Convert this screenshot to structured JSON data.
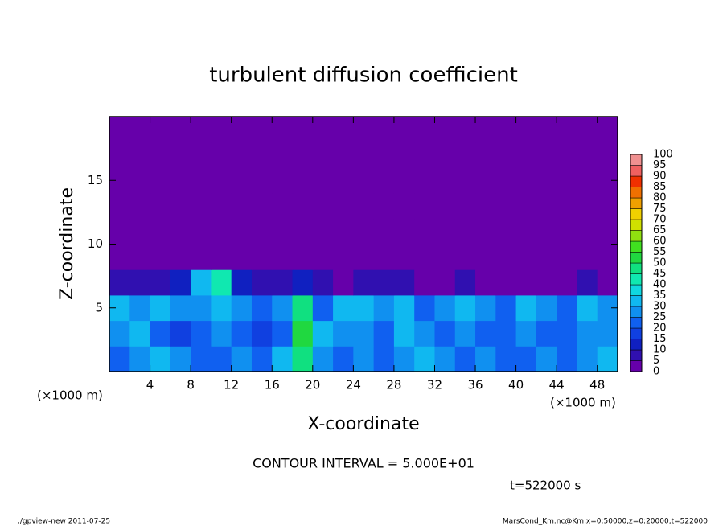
{
  "chart_data": {
    "type": "heatmap",
    "title": "turbulent diffusion coefficient",
    "x_label": "X-coordinate",
    "y_label": "Z-coordinate",
    "x_unit": "(×1000 m)",
    "y_unit": "(×1000 m)",
    "xlim": [
      0,
      50
    ],
    "ylim": [
      0,
      20
    ],
    "xticks": [
      4,
      8,
      12,
      16,
      20,
      24,
      28,
      32,
      36,
      40,
      44,
      48
    ],
    "yticks": [
      5,
      10,
      15
    ],
    "x_bins": [
      0,
      2,
      4,
      6,
      8,
      10,
      12,
      14,
      16,
      18,
      20,
      22,
      24,
      26,
      28,
      30,
      32,
      34,
      36,
      38,
      40,
      42,
      44,
      46,
      48,
      50
    ],
    "y_bins": [
      0,
      2,
      4,
      6,
      8,
      10,
      12,
      14,
      16,
      18,
      20
    ],
    "z": [
      [
        20,
        25,
        30,
        25,
        20,
        20,
        25,
        20,
        30,
        45,
        25,
        20,
        25,
        20,
        25,
        30,
        25,
        20,
        25,
        20,
        20,
        25,
        20,
        25,
        30
      ],
      [
        25,
        30,
        20,
        15,
        20,
        25,
        20,
        15,
        20,
        50,
        30,
        25,
        25,
        20,
        30,
        25,
        20,
        25,
        20,
        20,
        25,
        20,
        20,
        25,
        25
      ],
      [
        30,
        25,
        30,
        25,
        25,
        30,
        25,
        20,
        25,
        45,
        20,
        30,
        30,
        25,
        30,
        20,
        25,
        30,
        25,
        20,
        30,
        25,
        20,
        30,
        25
      ],
      [
        5,
        5,
        5,
        10,
        30,
        40,
        10,
        5,
        5,
        10,
        5,
        0,
        5,
        5,
        5,
        0,
        0,
        5,
        0,
        0,
        0,
        0,
        0,
        5,
        0
      ],
      [
        0,
        0,
        0,
        0,
        0,
        0,
        0,
        0,
        0,
        0,
        0,
        0,
        0,
        0,
        0,
        0,
        0,
        0,
        0,
        0,
        0,
        0,
        0,
        0,
        0
      ],
      [
        0,
        0,
        0,
        0,
        0,
        0,
        0,
        0,
        0,
        0,
        0,
        0,
        0,
        0,
        0,
        0,
        0,
        0,
        0,
        0,
        0,
        0,
        0,
        0,
        0
      ],
      [
        0,
        0,
        0,
        0,
        0,
        0,
        0,
        0,
        0,
        0,
        0,
        0,
        0,
        0,
        0,
        0,
        0,
        0,
        0,
        0,
        0,
        0,
        0,
        0,
        0
      ],
      [
        0,
        0,
        0,
        0,
        0,
        0,
        0,
        0,
        0,
        0,
        0,
        0,
        0,
        0,
        0,
        0,
        0,
        0,
        0,
        0,
        0,
        0,
        0,
        0,
        0
      ],
      [
        0,
        0,
        0,
        0,
        0,
        0,
        0,
        0,
        0,
        0,
        0,
        0,
        0,
        0,
        0,
        0,
        0,
        0,
        0,
        0,
        0,
        0,
        0,
        0,
        0
      ],
      [
        0,
        0,
        0,
        0,
        0,
        0,
        0,
        0,
        0,
        0,
        0,
        0,
        0,
        0,
        0,
        0,
        0,
        0,
        0,
        0,
        0,
        0,
        0,
        0,
        0
      ]
    ],
    "levels": [
      0,
      5,
      10,
      15,
      20,
      25,
      30,
      35,
      40,
      45,
      50,
      55,
      60,
      65,
      70,
      75,
      80,
      85,
      90,
      95,
      100
    ],
    "colors": [
      "#6600aa",
      "#3010b0",
      "#1020c0",
      "#1040e0",
      "#1060f0",
      "#1090f0",
      "#10b8f0",
      "#10d8e0",
      "#10e8b0",
      "#10e080",
      "#20d840",
      "#40e020",
      "#90e010",
      "#d0e000",
      "#f0d000",
      "#f0a000",
      "#f07000",
      "#f03000",
      "#f06060",
      "#f09090"
    ],
    "contour_note": "CONTOUR INTERVAL = 5.000E+01",
    "time_note": "t=522000 s",
    "footer_left": "./gpview-new  2011-07-25",
    "footer_right": "MarsCond_Km.nc@Km,x=0:50000,z=0:20000,t=522000"
  }
}
